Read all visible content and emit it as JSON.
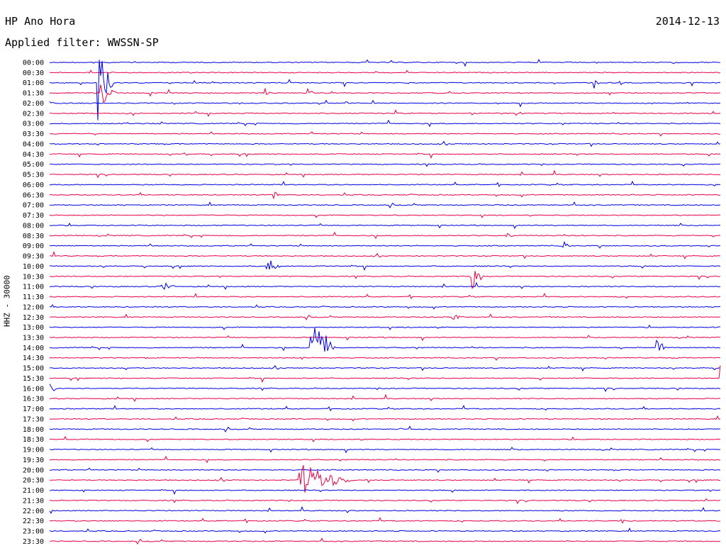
{
  "header": {
    "title": "HP Ano Hora",
    "date": "2014-12-13",
    "filter_text": "Applied filter: WWSSN-SP"
  },
  "colors": {
    "blue": "#0000ee",
    "red": "#ee0044"
  },
  "chart_data": {
    "type": "seismogram",
    "ylabel": "HHZ - 30000",
    "rows": [
      {
        "label": "00:00",
        "color": "blue",
        "trace": []
      },
      {
        "label": "00:30",
        "color": "red",
        "trace": []
      },
      {
        "label": "01:00",
        "color": "blue",
        "trace": []
      },
      {
        "label": "01:30",
        "color": "red",
        "trace": []
      },
      {
        "label": "02:00",
        "color": "blue",
        "trace": []
      },
      {
        "label": "02:30",
        "color": "red",
        "trace": []
      },
      {
        "label": "03:00",
        "color": "blue",
        "trace": []
      },
      {
        "label": "03:30",
        "color": "red",
        "trace": []
      },
      {
        "label": "04:00",
        "color": "blue",
        "trace": []
      },
      {
        "label": "04:30",
        "color": "red",
        "trace": []
      },
      {
        "label": "05:00",
        "color": "blue",
        "trace": []
      },
      {
        "label": "05:30",
        "color": "red",
        "trace": []
      },
      {
        "label": "06:00",
        "color": "blue",
        "trace": []
      },
      {
        "label": "06:30",
        "color": "red",
        "trace": []
      },
      {
        "label": "07:00",
        "color": "blue",
        "trace": []
      },
      {
        "label": "07:30",
        "color": "red",
        "trace": []
      },
      {
        "label": "08:00",
        "color": "blue",
        "trace": []
      },
      {
        "label": "08:30",
        "color": "red",
        "trace": []
      },
      {
        "label": "09:00",
        "color": "blue",
        "trace": []
      },
      {
        "label": "09:30",
        "color": "red",
        "trace": []
      },
      {
        "label": "10:00",
        "color": "blue",
        "trace": []
      },
      {
        "label": "10:30",
        "color": "red",
        "trace": []
      },
      {
        "label": "11:00",
        "color": "blue",
        "trace": []
      },
      {
        "label": "11:30",
        "color": "red",
        "trace": []
      },
      {
        "label": "12:00",
        "color": "blue",
        "trace": []
      },
      {
        "label": "12:30",
        "color": "red",
        "trace": []
      },
      {
        "label": "13:00",
        "color": "blue",
        "trace": []
      },
      {
        "label": "13:30",
        "color": "red",
        "trace": []
      },
      {
        "label": "14:00",
        "color": "blue",
        "trace": []
      },
      {
        "label": "14:30",
        "color": "red",
        "trace": []
      },
      {
        "label": "15:00",
        "color": "blue",
        "trace": []
      },
      {
        "label": "15:30",
        "color": "red",
        "trace": []
      },
      {
        "label": "16:00",
        "color": "blue",
        "trace": []
      },
      {
        "label": "16:30",
        "color": "red",
        "trace": []
      },
      {
        "label": "17:00",
        "color": "blue",
        "trace": []
      },
      {
        "label": "17:30",
        "color": "red",
        "trace": []
      },
      {
        "label": "18:00",
        "color": "blue",
        "trace": []
      },
      {
        "label": "18:30",
        "color": "red",
        "trace": []
      },
      {
        "label": "19:00",
        "color": "blue",
        "trace": []
      },
      {
        "label": "19:30",
        "color": "red",
        "trace": []
      },
      {
        "label": "20:00",
        "color": "blue",
        "trace": []
      },
      {
        "label": "20:30",
        "color": "red",
        "trace": []
      },
      {
        "label": "21:00",
        "color": "blue",
        "trace": []
      },
      {
        "label": "21:30",
        "color": "red",
        "trace": []
      },
      {
        "label": "22:00",
        "color": "blue",
        "trace": []
      },
      {
        "label": "22:30",
        "color": "red",
        "trace": []
      },
      {
        "label": "23:00",
        "color": "blue",
        "trace": []
      },
      {
        "label": "23:30",
        "color": "red",
        "trace": []
      }
    ],
    "events": [
      {
        "row": 2,
        "x_frac": 0.071,
        "amp": 58,
        "dur": 0.03
      },
      {
        "row": 3,
        "x_frac": 0.074,
        "amp": 24,
        "dur": 0.03
      },
      {
        "row": 3,
        "x_frac": 0.321,
        "amp": 7,
        "dur": 0.012
      },
      {
        "row": 3,
        "x_frac": 0.384,
        "amp": 9,
        "dur": 0.012
      },
      {
        "row": 2,
        "x_frac": 0.81,
        "amp": 9,
        "dur": 0.012
      },
      {
        "row": 5,
        "x_frac": 0.694,
        "amp": 5,
        "dur": 0.018
      },
      {
        "row": 9,
        "x_frac": 0.2,
        "amp": 4,
        "dur": 0.012
      },
      {
        "row": 13,
        "x_frac": 0.333,
        "amp": 8,
        "dur": 0.012
      },
      {
        "row": 17,
        "x_frac": 0.678,
        "amp": 6,
        "dur": 0.02
      },
      {
        "row": 18,
        "x_frac": 0.763,
        "amp": 13,
        "dur": 0.015
      },
      {
        "row": 20,
        "x_frac": 0.323,
        "amp": 18,
        "dur": 0.025
      },
      {
        "row": 21,
        "x_frac": 0.629,
        "amp": 28,
        "dur": 0.02
      },
      {
        "row": 22,
        "x_frac": 0.165,
        "amp": 8,
        "dur": 0.03
      },
      {
        "row": 25,
        "x_frac": 0.599,
        "amp": 6,
        "dur": 0.025
      },
      {
        "row": 28,
        "x_frac": 0.388,
        "amp": 82,
        "dur": 0.04
      },
      {
        "row": 28,
        "x_frac": 0.902,
        "amp": 18,
        "dur": 0.02
      },
      {
        "row": 29,
        "x_frac": 0.372,
        "amp": 12,
        "dur": 0.012
      },
      {
        "row": 32,
        "x_frac": 0.0,
        "amp": 12,
        "dur": 0.012
      },
      {
        "row": 31,
        "x_frac": 0.998,
        "amp": 22,
        "dur": 0.01
      },
      {
        "row": 36,
        "x_frac": 0.52,
        "amp": 7,
        "dur": 0.012
      },
      {
        "row": 41,
        "x_frac": 0.37,
        "amp": 26,
        "dur": 0.1
      },
      {
        "row": 45,
        "x_frac": 0.85,
        "amp": 6,
        "dur": 0.012
      }
    ]
  }
}
